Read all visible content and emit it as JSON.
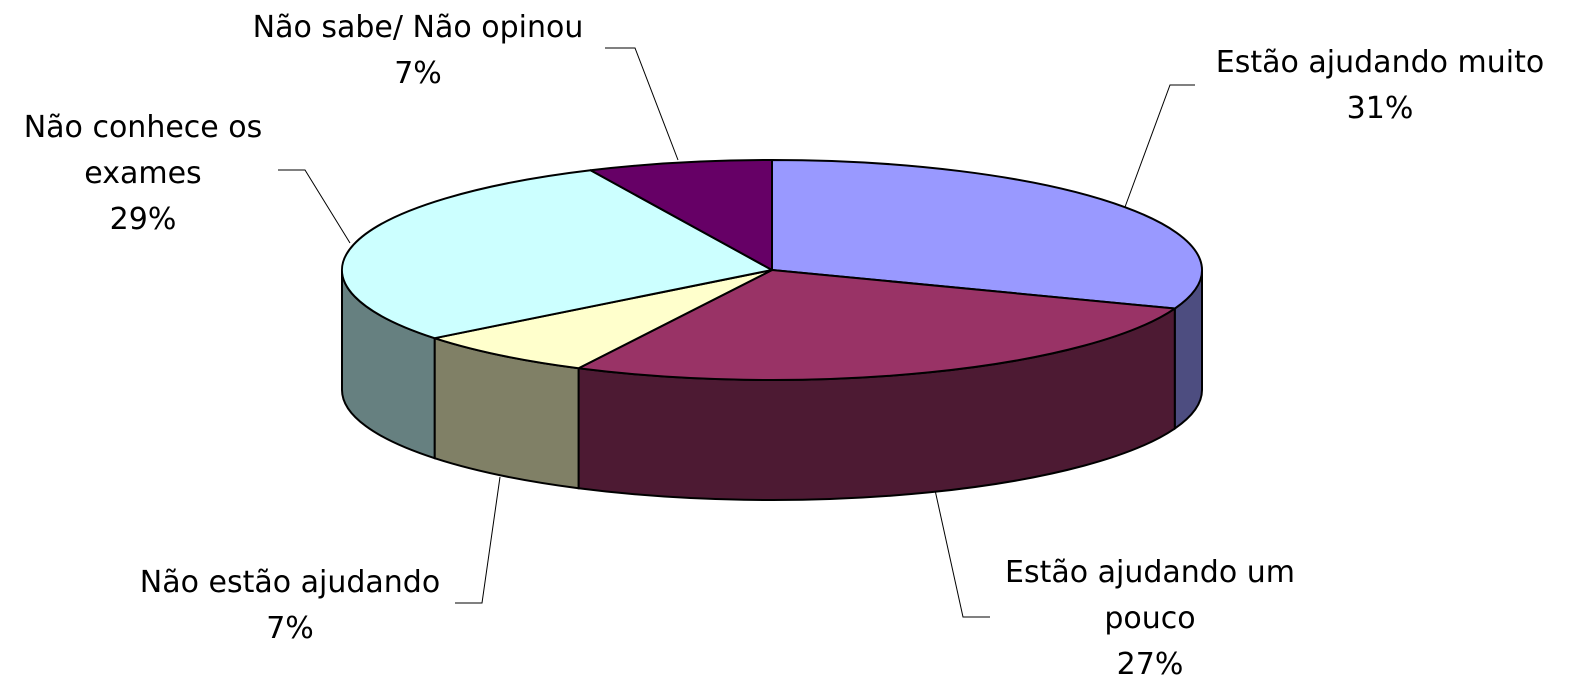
{
  "chart_data": {
    "type": "pie",
    "categories": [
      "Estão ajudando muito",
      "Estão ajudando um pouco",
      "Não estão ajudando",
      "Não conhece os exames",
      "Não sabe/ Não opinou"
    ],
    "values": [
      31,
      27,
      7,
      29,
      7
    ],
    "value_labels": [
      "31%",
      "27%",
      "7%",
      "29%",
      "7%"
    ],
    "colors": [
      "#9999ff",
      "#993366",
      "#ffffcc",
      "#ccffff",
      "#660066"
    ]
  }
}
